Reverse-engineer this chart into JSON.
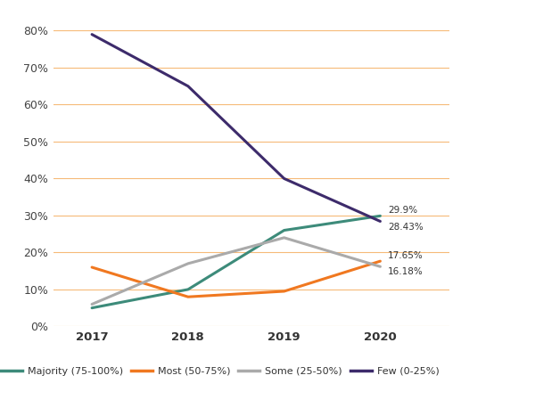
{
  "years": [
    2017,
    2018,
    2019,
    2020
  ],
  "series": [
    {
      "label": "Majority (75-100%)",
      "color": "#3d8b7a",
      "values": [
        5.0,
        10.0,
        26.0,
        29.9
      ],
      "end_label": "29.9%"
    },
    {
      "label": "Most (50-75%)",
      "color": "#f07820",
      "values": [
        16.0,
        8.0,
        9.5,
        17.65
      ],
      "end_label": "17.65%"
    },
    {
      "label": "Some (25-50%)",
      "color": "#aaaaaa",
      "values": [
        6.0,
        17.0,
        24.0,
        16.18
      ],
      "end_label": "16.18%"
    },
    {
      "label": "Few (0-25%)",
      "color": "#3d2b6b",
      "values": [
        79.0,
        65.0,
        40.0,
        28.43
      ],
      "end_label": "28.43%"
    }
  ],
  "ylim": [
    0,
    85
  ],
  "yticks": [
    0,
    10,
    20,
    30,
    40,
    50,
    60,
    70,
    80
  ],
  "ytick_labels": [
    "0%",
    "10%",
    "20%",
    "30%",
    "40%",
    "50%",
    "60%",
    "70%",
    "80%"
  ],
  "grid_color": "#f0820a",
  "grid_alpha": 0.55,
  "grid_linewidth": 0.8,
  "background_color": "#ffffff",
  "line_width": 2.2,
  "end_label_offsets": {
    "29.9%": 1.5,
    "28.43%": -1.5,
    "17.65%": 1.5,
    "16.18%": -1.5
  },
  "legend_items": [
    {
      "label": "Majority (75-100%)",
      "color": "#3d8b7a"
    },
    {
      "label": "Most (50-75%)",
      "color": "#f07820"
    },
    {
      "label": "Some (25-50%)",
      "color": "#aaaaaa"
    },
    {
      "label": "Few (0-25%)",
      "color": "#3d2b6b"
    }
  ]
}
